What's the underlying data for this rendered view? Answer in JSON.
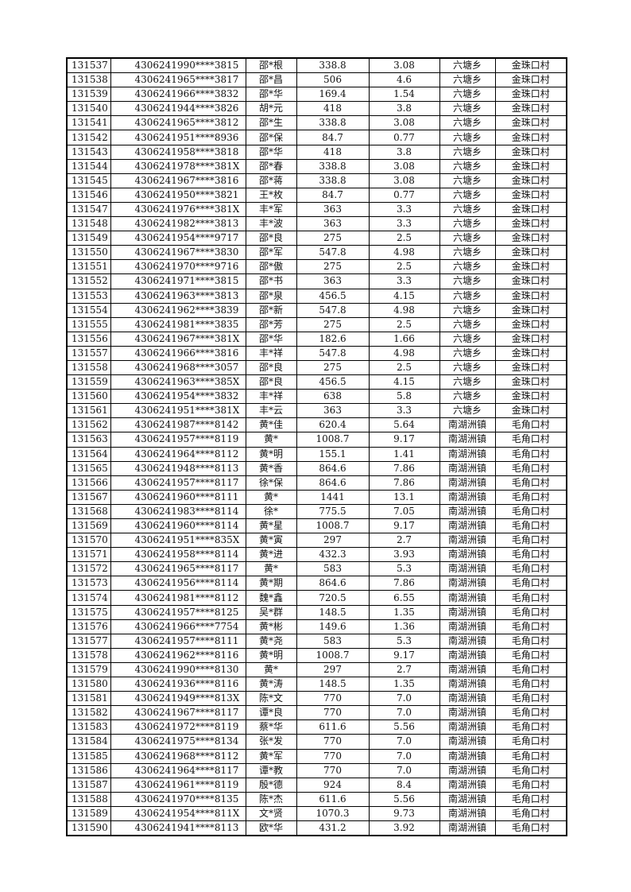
{
  "table": {
    "rows": [
      [
        "131537",
        "4306241990****3815",
        "邵*根",
        "338.8",
        "3.08",
        "六塘乡",
        "金珠口村"
      ],
      [
        "131538",
        "4306241965****3817",
        "邵*昌",
        "506",
        "4.6",
        "六塘乡",
        "金珠口村"
      ],
      [
        "131539",
        "4306241966****3832",
        "邵*华",
        "169.4",
        "1.54",
        "六塘乡",
        "金珠口村"
      ],
      [
        "131540",
        "4306241944****3826",
        "胡*元",
        "418",
        "3.8",
        "六塘乡",
        "金珠口村"
      ],
      [
        "131541",
        "4306241965****3812",
        "邵*生",
        "338.8",
        "3.08",
        "六塘乡",
        "金珠口村"
      ],
      [
        "131542",
        "4306241951****8936",
        "邵*保",
        "84.7",
        "0.77",
        "六塘乡",
        "金珠口村"
      ],
      [
        "131543",
        "4306241958****3818",
        "邵*华",
        "418",
        "3.8",
        "六塘乡",
        "金珠口村"
      ],
      [
        "131544",
        "4306241978****381X",
        "邵*春",
        "338.8",
        "3.08",
        "六塘乡",
        "金珠口村"
      ],
      [
        "131545",
        "4306241967****3816",
        "邵*蒋",
        "338.8",
        "3.08",
        "六塘乡",
        "金珠口村"
      ],
      [
        "131546",
        "4306241950****3821",
        "王*枚",
        "84.7",
        "0.77",
        "六塘乡",
        "金珠口村"
      ],
      [
        "131547",
        "4306241976****381X",
        "丰*军",
        "363",
        "3.3",
        "六塘乡",
        "金珠口村"
      ],
      [
        "131548",
        "4306241982****3813",
        "丰*波",
        "363",
        "3.3",
        "六塘乡",
        "金珠口村"
      ],
      [
        "131549",
        "4306241954****9717",
        "邵*良",
        "275",
        "2.5",
        "六塘乡",
        "金珠口村"
      ],
      [
        "131550",
        "4306241967****3830",
        "邵*军",
        "547.8",
        "4.98",
        "六塘乡",
        "金珠口村"
      ],
      [
        "131551",
        "4306241970****9716",
        "邵*傲",
        "275",
        "2.5",
        "六塘乡",
        "金珠口村"
      ],
      [
        "131552",
        "4306241971****3815",
        "邵*书",
        "363",
        "3.3",
        "六塘乡",
        "金珠口村"
      ],
      [
        "131553",
        "4306241963****3813",
        "邵*泉",
        "456.5",
        "4.15",
        "六塘乡",
        "金珠口村"
      ],
      [
        "131554",
        "4306241962****3839",
        "邵*新",
        "547.8",
        "4.98",
        "六塘乡",
        "金珠口村"
      ],
      [
        "131555",
        "4306241981****3835",
        "邵*芳",
        "275",
        "2.5",
        "六塘乡",
        "金珠口村"
      ],
      [
        "131556",
        "4306241967****381X",
        "邵*华",
        "182.6",
        "1.66",
        "六塘乡",
        "金珠口村"
      ],
      [
        "131557",
        "4306241966****3816",
        "丰*祥",
        "547.8",
        "4.98",
        "六塘乡",
        "金珠口村"
      ],
      [
        "131558",
        "4306241968****3057",
        "邵*良",
        "275",
        "2.5",
        "六塘乡",
        "金珠口村"
      ],
      [
        "131559",
        "4306241963****385X",
        "邵*良",
        "456.5",
        "4.15",
        "六塘乡",
        "金珠口村"
      ],
      [
        "131560",
        "4306241954****3832",
        "丰*祥",
        "638",
        "5.8",
        "六塘乡",
        "金珠口村"
      ],
      [
        "131561",
        "4306241951****381X",
        "丰*云",
        "363",
        "3.3",
        "六塘乡",
        "金珠口村"
      ],
      [
        "131562",
        "4306241987****8142",
        "黄*佳",
        "620.4",
        "5.64",
        "南湖洲镇",
        "毛角口村"
      ],
      [
        "131563",
        "4306241957****8119",
        "黄*",
        "1008.7",
        "9.17",
        "南湖洲镇",
        "毛角口村"
      ],
      [
        "131564",
        "4306241964****8112",
        "黄*明",
        "155.1",
        "1.41",
        "南湖洲镇",
        "毛角口村"
      ],
      [
        "131565",
        "4306241948****8113",
        "黄*香",
        "864.6",
        "7.86",
        "南湖洲镇",
        "毛角口村"
      ],
      [
        "131566",
        "4306241957****8117",
        "徐*保",
        "864.6",
        "7.86",
        "南湖洲镇",
        "毛角口村"
      ],
      [
        "131567",
        "4306241960****8111",
        "黄*",
        "1441",
        "13.1",
        "南湖洲镇",
        "毛角口村"
      ],
      [
        "131568",
        "4306241983****8114",
        "徐*",
        "775.5",
        "7.05",
        "南湖洲镇",
        "毛角口村"
      ],
      [
        "131569",
        "4306241960****8114",
        "黄*星",
        "1008.7",
        "9.17",
        "南湖洲镇",
        "毛角口村"
      ],
      [
        "131570",
        "4306241951****835X",
        "黄*寅",
        "297",
        "2.7",
        "南湖洲镇",
        "毛角口村"
      ],
      [
        "131571",
        "4306241958****8114",
        "黄*进",
        "432.3",
        "3.93",
        "南湖洲镇",
        "毛角口村"
      ],
      [
        "131572",
        "4306241965****8117",
        "黄*",
        "583",
        "5.3",
        "南湖洲镇",
        "毛角口村"
      ],
      [
        "131573",
        "4306241956****8114",
        "黄*期",
        "864.6",
        "7.86",
        "南湖洲镇",
        "毛角口村"
      ],
      [
        "131574",
        "4306241981****8112",
        "魏*鑫",
        "720.5",
        "6.55",
        "南湖洲镇",
        "毛角口村"
      ],
      [
        "131575",
        "4306241957****8125",
        "吴*群",
        "148.5",
        "1.35",
        "南湖洲镇",
        "毛角口村"
      ],
      [
        "131576",
        "4306241966****7754",
        "黄*彬",
        "149.6",
        "1.36",
        "南湖洲镇",
        "毛角口村"
      ],
      [
        "131577",
        "4306241957****8111",
        "黄*尧",
        "583",
        "5.3",
        "南湖洲镇",
        "毛角口村"
      ],
      [
        "131578",
        "4306241962****8116",
        "黄*明",
        "1008.7",
        "9.17",
        "南湖洲镇",
        "毛角口村"
      ],
      [
        "131579",
        "4306241990****8130",
        "黄*",
        "297",
        "2.7",
        "南湖洲镇",
        "毛角口村"
      ],
      [
        "131580",
        "4306241936****8116",
        "黄*涛",
        "148.5",
        "1.35",
        "南湖洲镇",
        "毛角口村"
      ],
      [
        "131581",
        "4306241949****813X",
        "陈*文",
        "770",
        "7.0",
        "南湖洲镇",
        "毛角口村"
      ],
      [
        "131582",
        "4306241967****8117",
        "谭*良",
        "770",
        "7.0",
        "南湖洲镇",
        "毛角口村"
      ],
      [
        "131583",
        "4306241972****8119",
        "蔡*华",
        "611.6",
        "5.56",
        "南湖洲镇",
        "毛角口村"
      ],
      [
        "131584",
        "4306241975****8134",
        "张*发",
        "770",
        "7.0",
        "南湖洲镇",
        "毛角口村"
      ],
      [
        "131585",
        "4306241968****8112",
        "黄*军",
        "770",
        "7.0",
        "南湖洲镇",
        "毛角口村"
      ],
      [
        "131586",
        "4306241964****8117",
        "谭*教",
        "770",
        "7.0",
        "南湖洲镇",
        "毛角口村"
      ],
      [
        "131587",
        "4306241961****8119",
        "殷*德",
        "924",
        "8.4",
        "南湖洲镇",
        "毛角口村"
      ],
      [
        "131588",
        "4306241970****8135",
        "陈*杰",
        "611.6",
        "5.56",
        "南湖洲镇",
        "毛角口村"
      ],
      [
        "131589",
        "4306241954****811X",
        "文*贤",
        "1070.3",
        "9.73",
        "南湖洲镇",
        "毛角口村"
      ],
      [
        "131590",
        "4306241941****8113",
        "欧*华",
        "431.2",
        "3.92",
        "南湖洲镇",
        "毛角口村"
      ]
    ]
  }
}
